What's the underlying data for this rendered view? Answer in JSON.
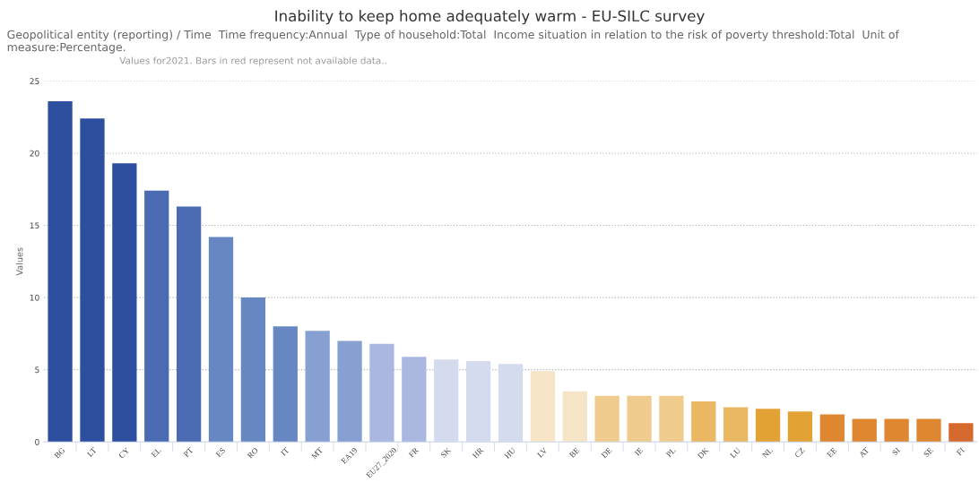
{
  "chart_data": {
    "type": "bar",
    "title": "Inability to keep home adequately warm - EU-SILC survey",
    "subtitle": "Geopolitical entity (reporting) / Time  Time frequency:Annual  Type of household:Total  Income situation in relation to the risk of poverty threshold:Total  Unit of measure:Percentage.",
    "annotations": [
      "Values for2021. Bars in red represent not available data.."
    ],
    "ylabel": "Values",
    "categories": [
      "BG",
      "LT",
      "CY",
      "EL",
      "PT",
      "ES",
      "RO",
      "IT",
      "MT",
      "EA19",
      "EU27_2020",
      "FR",
      "SK",
      "HR",
      "HU",
      "LV",
      "BE",
      "DE",
      "IE",
      "PL",
      "DK",
      "LU",
      "NL",
      "CZ",
      "EE",
      "AT",
      "SI",
      "SE",
      "FI"
    ],
    "values": [
      23.6,
      22.4,
      19.3,
      17.4,
      16.3,
      14.2,
      10.0,
      8.0,
      7.7,
      7.0,
      6.8,
      5.9,
      5.7,
      5.6,
      5.4,
      4.9,
      3.5,
      3.2,
      3.2,
      3.2,
      2.8,
      2.4,
      2.3,
      2.1,
      1.9,
      1.6,
      1.6,
      1.6,
      1.3
    ],
    "colors": [
      "#2e4f9f",
      "#2e4f9f",
      "#2e4f9f",
      "#4a6bb2",
      "#4a6bb2",
      "#6787c2",
      "#6787c2",
      "#6787c2",
      "#87a0d2",
      "#87a0d2",
      "#aab7e0",
      "#aab7e0",
      "#d5dbee",
      "#d5dbee",
      "#d5dbee",
      "#f6e4c6",
      "#f6e4c6",
      "#f0cb8e",
      "#f0cb8e",
      "#f0cb8e",
      "#eab763",
      "#eab763",
      "#e3a234",
      "#e3a234",
      "#de8630",
      "#de8630",
      "#de8630",
      "#de8630",
      "#d66a2e"
    ],
    "ylim": [
      0,
      25
    ],
    "yticks": [
      0,
      5,
      10,
      15,
      20,
      25
    ],
    "grid": "y",
    "legend": false
  }
}
